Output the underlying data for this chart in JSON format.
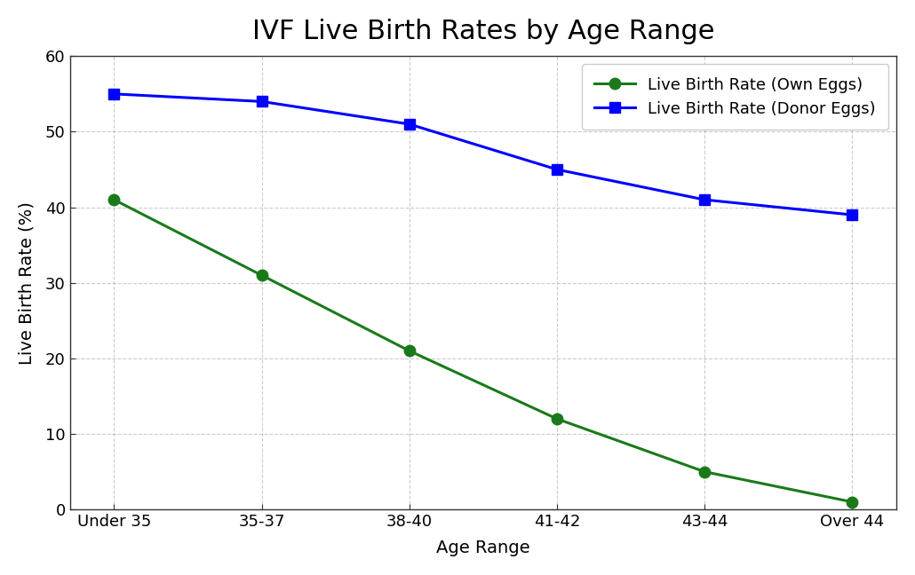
{
  "title": "IVF Live Birth Rates by Age Range",
  "xlabel": "Age Range",
  "ylabel": "Live Birth Rate (%)",
  "categories": [
    "Under 35",
    "35-37",
    "38-40",
    "41-42",
    "43-44",
    "Over 44"
  ],
  "own_eggs": [
    41,
    31,
    21,
    12,
    5,
    1
  ],
  "donor_eggs": [
    55,
    54,
    51,
    45,
    41,
    39
  ],
  "own_eggs_color": "#1a7a1a",
  "donor_eggs_color": "#0000ff",
  "own_eggs_label": "Live Birth Rate (Own Eggs)",
  "donor_eggs_label": "Live Birth Rate (Donor Eggs)",
  "ylim": [
    0,
    60
  ],
  "yticks": [
    0,
    10,
    20,
    30,
    40,
    50,
    60
  ],
  "background_color": "#ffffff",
  "title_fontsize": 22,
  "axis_label_fontsize": 14,
  "tick_fontsize": 13,
  "legend_fontsize": 13,
  "linewidth": 2.2,
  "markersize": 9,
  "grid_color": "#aaaaaa",
  "spine_color": "#333333"
}
